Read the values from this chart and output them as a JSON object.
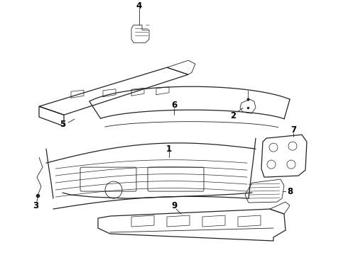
{
  "background_color": "#ffffff",
  "line_color": "#222222",
  "fig_width": 4.9,
  "fig_height": 3.6,
  "dpi": 100,
  "label_fontsize": 8.5
}
